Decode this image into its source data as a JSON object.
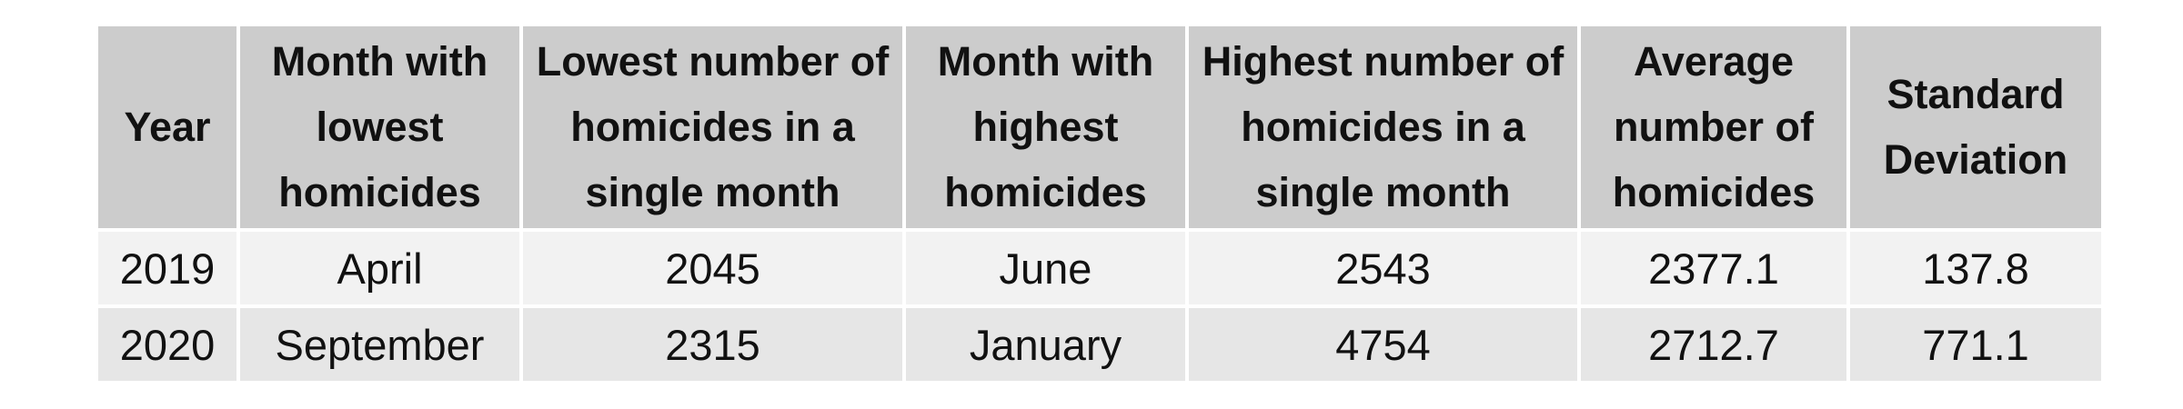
{
  "table": {
    "headers": [
      "Year",
      "Month with lowest homicides",
      "Lowest number of homicides in a single month",
      "Month with highest homicides",
      "Highest number of homicides in a single month",
      "Average number of homicides",
      "Standard Deviation"
    ],
    "rows": [
      [
        "2019",
        "April",
        "2045",
        "June",
        "2543",
        "2377.1",
        "137.8"
      ],
      [
        "2020",
        "September",
        "2315",
        "January",
        "4754",
        "2712.7",
        "771.1"
      ]
    ],
    "colors": {
      "header_bg": "#cccccc",
      "row_light_bg": "#f2f2f2",
      "row_dark_bg": "#e6e6e6",
      "border": "#ffffff"
    }
  }
}
